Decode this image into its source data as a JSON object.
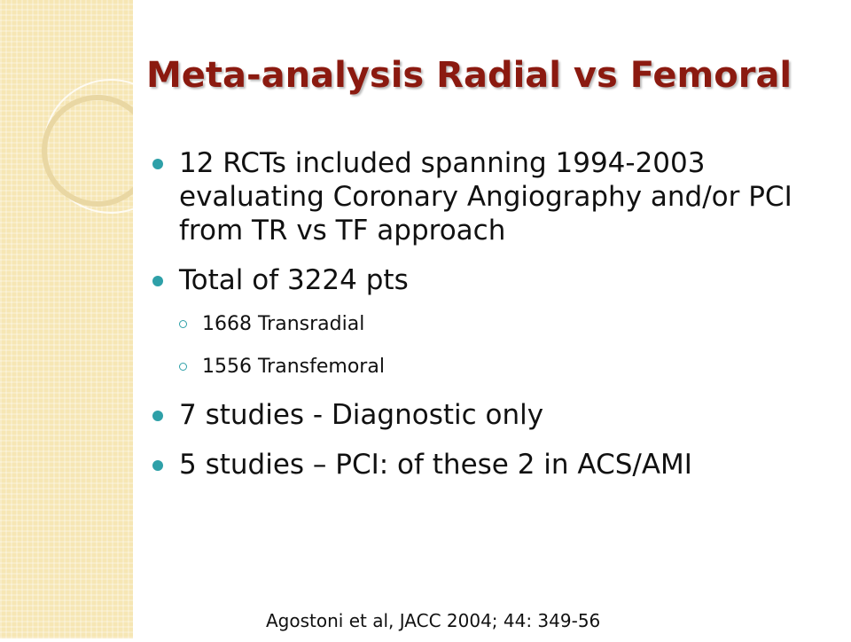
{
  "title": "Meta-analysis Radial vs Femoral",
  "bullets": [
    {
      "text": "12 RCTs included spanning 1994-2003 evaluating Coronary Angiography and/or PCI from TR vs TF approach",
      "level": 1
    },
    {
      "text": "Total of 3224 pts",
      "level": 1
    },
    {
      "text": "1668 Transradial",
      "level": 2
    },
    {
      "text": "1556 Transfemoral",
      "level": 2
    },
    {
      "text": "7 studies - Diagnostic only",
      "level": 1
    },
    {
      "text": "5 studies – PCI: of these 2 in ACS/AMI",
      "level": 1
    }
  ],
  "citation": "Agostoni et al, JACC 2004; 44: 349-56"
}
